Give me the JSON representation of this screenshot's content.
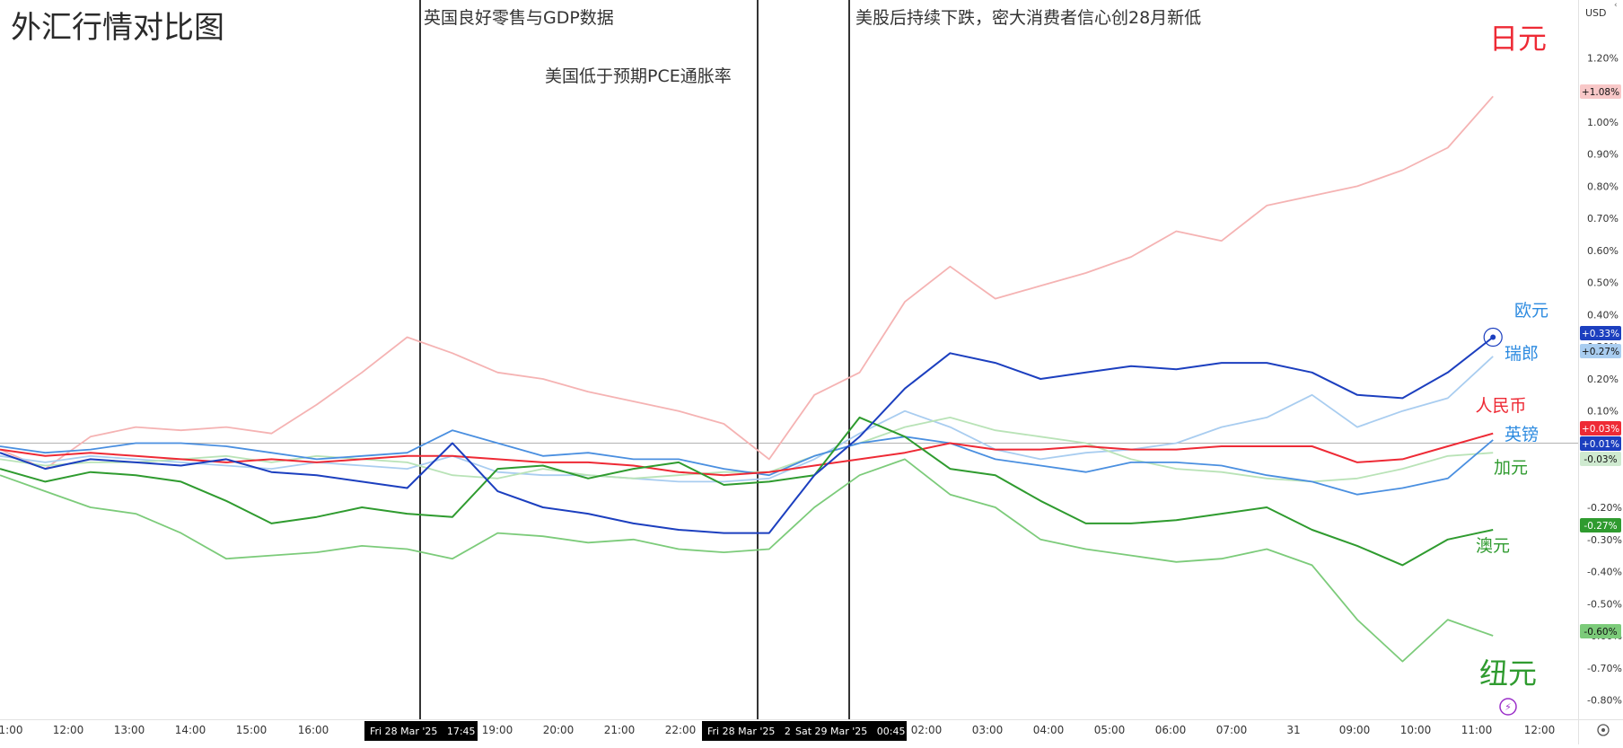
{
  "title": "外汇行情对比图",
  "currency_label": "USD",
  "annotations": [
    {
      "text": "英国良好零售与GDP数据"
    },
    {
      "text": "美国低于预期PCE通胀率"
    },
    {
      "text": "美股后持续下跌，密大消费者信心创28月新低"
    }
  ],
  "time_badges": [
    {
      "text": "Fri 28 Mar '25   17:45"
    },
    {
      "text": "Fri 28 Mar '25   23"
    },
    {
      "text": "Sat 29 Mar '25   00:45"
    }
  ],
  "colors": {
    "jpy": "#f5b3b3",
    "eur": "#1c3fbf",
    "chf": "#a9cdf0",
    "cny": "#ee2a35",
    "gbp": "#4a8fe0",
    "cad": "#b9e3b7",
    "aud": "#2f9b2f",
    "nzd": "#7ccb7a",
    "annotation_line": "#000000",
    "zero_line": "#b3b3b3",
    "badge_bg": "#000000"
  },
  "chart_data": {
    "type": "line",
    "title": "外汇行情对比图",
    "ylabel": "",
    "xlabel": "",
    "x_tick_labels": [
      "1:00",
      "12:00",
      "13:00",
      "14:00",
      "15:00",
      "16:00",
      "19:00",
      "20:00",
      "21:00",
      "22:00",
      "02:00",
      "03:00",
      "04:00",
      "05:00",
      "06:00",
      "07:00",
      "31",
      "09:00",
      "10:00",
      "11:00",
      "12:00"
    ],
    "y_tick_labels": [
      "1.20%",
      "1.10%",
      "1.00%",
      "0.90%",
      "0.80%",
      "0.70%",
      "0.60%",
      "0.50%",
      "0.40%",
      "0.30%",
      "0.20%",
      "0.10%",
      "-0.20%",
      "-0.30%",
      "-0.40%",
      "-0.50%",
      "-0.60%",
      "-0.70%",
      "-0.80%"
    ],
    "ylim": [
      -0.86,
      1.38
    ],
    "x_range": [
      0,
      100
    ],
    "grid": false,
    "series": [
      {
        "key": "jpy",
        "name": "日元",
        "last_label": "+1.08%",
        "last_value": 1.08,
        "label_style": "big",
        "x": [
          0,
          3,
          6,
          9,
          12,
          15,
          18,
          21,
          24,
          27,
          30,
          33,
          36,
          39,
          42,
          45,
          48,
          51,
          54,
          57,
          60,
          63,
          66,
          69,
          72,
          75,
          78,
          81,
          84,
          87,
          90,
          93,
          96,
          99
        ],
        "y": [
          -0.02,
          -0.08,
          0.02,
          0.05,
          0.04,
          0.05,
          0.03,
          0.12,
          0.22,
          0.33,
          0.28,
          0.22,
          0.2,
          0.16,
          0.13,
          0.1,
          0.06,
          -0.05,
          0.15,
          0.22,
          0.44,
          0.55,
          0.45,
          0.49,
          0.53,
          0.58,
          0.66,
          0.63,
          0.74,
          0.77,
          0.8,
          0.85,
          0.92,
          1.08
        ]
      },
      {
        "key": "eur",
        "name": "欧元",
        "last_label": "+0.33%",
        "last_value": 0.33,
        "label_style": "small",
        "x": [
          0,
          3,
          6,
          9,
          12,
          15,
          18,
          21,
          24,
          27,
          30,
          33,
          36,
          39,
          42,
          45,
          48,
          51,
          54,
          57,
          60,
          63,
          66,
          69,
          72,
          75,
          78,
          81,
          84,
          87,
          90,
          93,
          96,
          99
        ],
        "y": [
          -0.03,
          -0.08,
          -0.05,
          -0.06,
          -0.07,
          -0.05,
          -0.09,
          -0.1,
          -0.12,
          -0.14,
          0.0,
          -0.15,
          -0.2,
          -0.22,
          -0.25,
          -0.27,
          -0.28,
          -0.28,
          -0.1,
          0.02,
          0.17,
          0.28,
          0.25,
          0.2,
          0.22,
          0.24,
          0.23,
          0.25,
          0.25,
          0.22,
          0.15,
          0.14,
          0.22,
          0.33
        ]
      },
      {
        "key": "chf",
        "name": "瑞郎",
        "last_label": "+0.27%",
        "last_value": 0.27,
        "label_style": "small",
        "x": [
          0,
          3,
          6,
          9,
          12,
          15,
          18,
          21,
          24,
          27,
          30,
          33,
          36,
          39,
          42,
          45,
          48,
          51,
          54,
          57,
          60,
          63,
          66,
          69,
          72,
          75,
          78,
          81,
          84,
          87,
          90,
          93,
          96,
          99
        ],
        "y": [
          -0.04,
          -0.06,
          -0.04,
          -0.05,
          -0.06,
          -0.07,
          -0.08,
          -0.06,
          -0.07,
          -0.08,
          -0.04,
          -0.09,
          -0.1,
          -0.1,
          -0.11,
          -0.12,
          -0.12,
          -0.11,
          -0.05,
          0.03,
          0.1,
          0.05,
          -0.02,
          -0.05,
          -0.03,
          -0.02,
          0.0,
          0.05,
          0.08,
          0.15,
          0.05,
          0.1,
          0.14,
          0.27
        ]
      },
      {
        "key": "cny",
        "name": "人民币",
        "last_label": "+0.03%",
        "last_value": 0.03,
        "label_style": "small",
        "x": [
          0,
          3,
          6,
          9,
          12,
          15,
          18,
          21,
          24,
          27,
          30,
          33,
          36,
          39,
          42,
          45,
          48,
          51,
          54,
          57,
          60,
          63,
          66,
          69,
          72,
          75,
          78,
          81,
          84,
          87,
          90,
          93,
          96,
          99
        ],
        "y": [
          -0.02,
          -0.04,
          -0.03,
          -0.04,
          -0.05,
          -0.06,
          -0.05,
          -0.06,
          -0.05,
          -0.04,
          -0.04,
          -0.05,
          -0.06,
          -0.06,
          -0.07,
          -0.09,
          -0.1,
          -0.09,
          -0.07,
          -0.05,
          -0.03,
          0.0,
          -0.02,
          -0.02,
          -0.01,
          -0.02,
          -0.02,
          -0.01,
          -0.01,
          -0.01,
          -0.06,
          -0.05,
          -0.01,
          0.03
        ]
      },
      {
        "key": "gbp",
        "name": "英镑",
        "last_label": "+0.01%",
        "last_value": 0.01,
        "label_style": "small",
        "x": [
          0,
          3,
          6,
          9,
          12,
          15,
          18,
          21,
          24,
          27,
          30,
          33,
          36,
          39,
          42,
          45,
          48,
          51,
          54,
          57,
          60,
          63,
          66,
          69,
          72,
          75,
          78,
          81,
          84,
          87,
          90,
          93,
          96,
          99
        ],
        "y": [
          -0.01,
          -0.03,
          -0.02,
          0.0,
          0.0,
          -0.01,
          -0.03,
          -0.05,
          -0.04,
          -0.03,
          0.04,
          0.0,
          -0.04,
          -0.03,
          -0.05,
          -0.05,
          -0.08,
          -0.1,
          -0.04,
          0.0,
          0.02,
          0.0,
          -0.05,
          -0.07,
          -0.09,
          -0.06,
          -0.06,
          -0.07,
          -0.1,
          -0.12,
          -0.16,
          -0.14,
          -0.11,
          0.01
        ]
      },
      {
        "key": "cad",
        "name": "加元",
        "last_label": "-0.03%",
        "last_value": -0.03,
        "label_style": "small",
        "x": [
          0,
          3,
          6,
          9,
          12,
          15,
          18,
          21,
          24,
          27,
          30,
          33,
          36,
          39,
          42,
          45,
          48,
          51,
          54,
          57,
          60,
          63,
          66,
          69,
          72,
          75,
          78,
          81,
          84,
          87,
          90,
          93,
          96,
          99
        ],
        "y": [
          -0.05,
          -0.07,
          -0.06,
          -0.06,
          -0.05,
          -0.04,
          -0.06,
          -0.04,
          -0.05,
          -0.06,
          -0.1,
          -0.11,
          -0.08,
          -0.1,
          -0.11,
          -0.1,
          -0.09,
          -0.09,
          -0.04,
          0.0,
          0.05,
          0.08,
          0.04,
          0.02,
          0.0,
          -0.05,
          -0.08,
          -0.09,
          -0.11,
          -0.12,
          -0.11,
          -0.08,
          -0.04,
          -0.03
        ]
      },
      {
        "key": "aud",
        "name": "澳元",
        "last_label": "-0.27%",
        "last_value": -0.27,
        "label_style": "small",
        "x": [
          0,
          3,
          6,
          9,
          12,
          15,
          18,
          21,
          24,
          27,
          30,
          33,
          36,
          39,
          42,
          45,
          48,
          51,
          54,
          57,
          60,
          63,
          66,
          69,
          72,
          75,
          78,
          81,
          84,
          87,
          90,
          93,
          96,
          99
        ],
        "y": [
          -0.08,
          -0.12,
          -0.09,
          -0.1,
          -0.12,
          -0.18,
          -0.25,
          -0.23,
          -0.2,
          -0.22,
          -0.23,
          -0.08,
          -0.07,
          -0.11,
          -0.08,
          -0.06,
          -0.13,
          -0.12,
          -0.1,
          0.08,
          0.02,
          -0.08,
          -0.1,
          -0.18,
          -0.25,
          -0.25,
          -0.24,
          -0.22,
          -0.2,
          -0.27,
          -0.32,
          -0.38,
          -0.3,
          -0.27
        ]
      },
      {
        "key": "nzd",
        "name": "纽元",
        "last_label": "-0.60%",
        "last_value": -0.6,
        "label_style": "big",
        "x": [
          0,
          3,
          6,
          9,
          12,
          15,
          18,
          21,
          24,
          27,
          30,
          33,
          36,
          39,
          42,
          45,
          48,
          51,
          54,
          57,
          60,
          63,
          66,
          69,
          72,
          75,
          78,
          81,
          84,
          87,
          90,
          93,
          96,
          99
        ],
        "y": [
          -0.1,
          -0.15,
          -0.2,
          -0.22,
          -0.28,
          -0.36,
          -0.35,
          -0.34,
          -0.32,
          -0.33,
          -0.36,
          -0.28,
          -0.29,
          -0.31,
          -0.3,
          -0.33,
          -0.34,
          -0.33,
          -0.2,
          -0.1,
          -0.05,
          -0.16,
          -0.2,
          -0.3,
          -0.33,
          -0.35,
          -0.37,
          -0.36,
          -0.33,
          -0.38,
          -0.55,
          -0.68,
          -0.55,
          -0.6
        ]
      }
    ]
  }
}
